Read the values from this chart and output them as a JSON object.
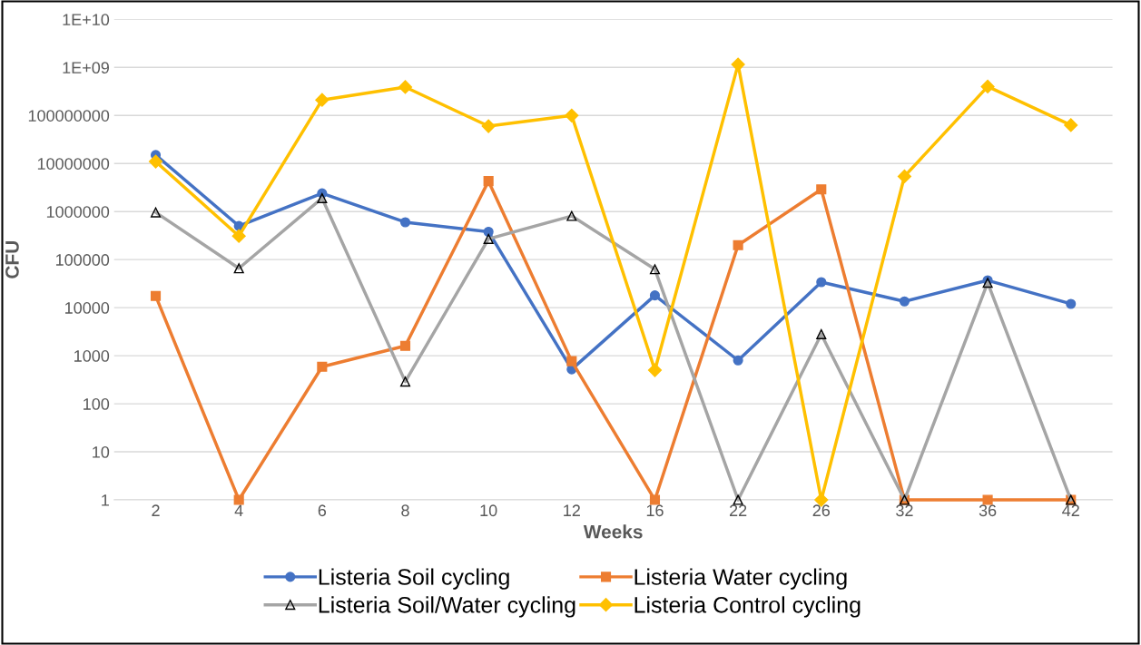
{
  "chart_data": {
    "type": "line",
    "xlabel": "Weeks",
    "ylabel": "CFU",
    "log": "y",
    "grid": "y",
    "legend": "bottom",
    "categories": [
      "2",
      "4",
      "6",
      "8",
      "10",
      "12",
      "16",
      "22",
      "26",
      "32",
      "36",
      "42"
    ],
    "ylim": [
      1,
      10000000000
    ],
    "yticks": [
      1,
      10,
      100,
      1000,
      10000,
      100000,
      1000000,
      10000000,
      100000000,
      {
        "value": 1000000000,
        "label": "1E+09"
      },
      {
        "value": 10000000000,
        "label": "1E+10"
      }
    ],
    "series": [
      {
        "name": "Listeria Soil cycling",
        "color": "#4472c4",
        "marker": "circle",
        "values": [
          15000000,
          500000,
          2400000,
          600000,
          380000,
          520,
          18000,
          800,
          34000,
          13500,
          37000,
          12000
        ]
      },
      {
        "name": "Listeria Water cycling",
        "color": "#ed7d31",
        "marker": "square",
        "values": [
          17500,
          1,
          590,
          1600,
          4300000,
          770,
          1,
          200000,
          2900000,
          1,
          1,
          1
        ]
      },
      {
        "name": "Listeria Soil/Water cycling",
        "color": "#a5a5a5",
        "marker": "triangle",
        "values": [
          960000,
          66000,
          1900000,
          290,
          270000,
          810000,
          63000,
          1,
          2800,
          1,
          33000,
          1
        ]
      },
      {
        "name": "Listeria Control cycling",
        "color": "#ffc000",
        "marker": "diamond",
        "values": [
          11000000,
          310000,
          210000000,
          390000000,
          60000000,
          100000000,
          500,
          1150000000,
          1,
          5400000,
          400000000,
          63000000
        ]
      }
    ]
  }
}
